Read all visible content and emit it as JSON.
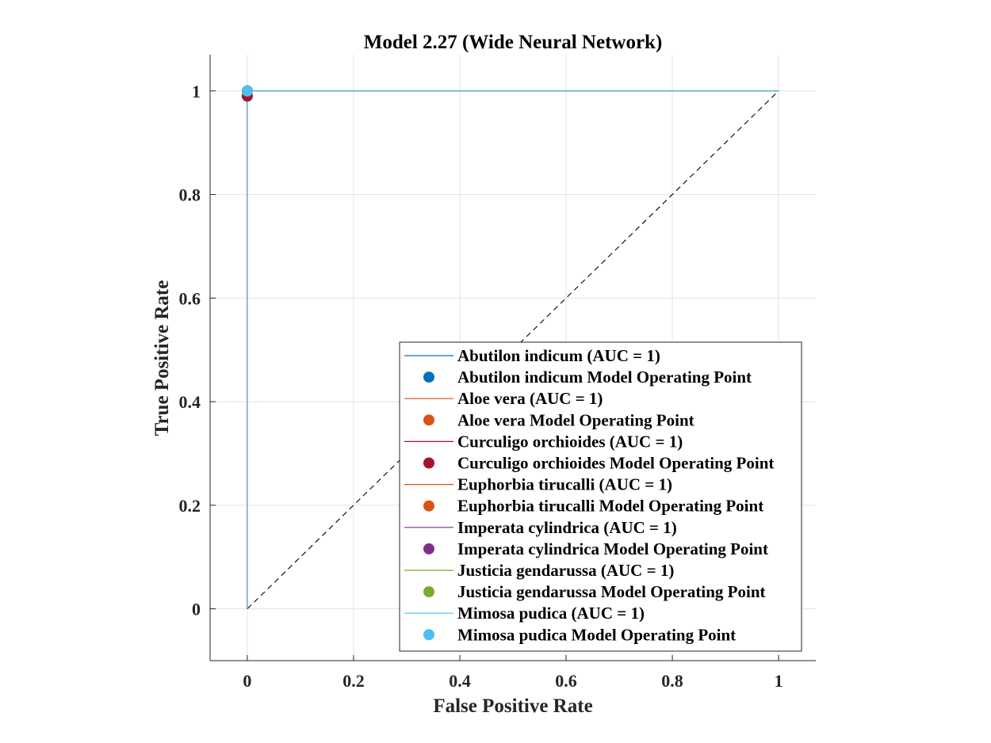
{
  "chart_data": {
    "type": "line",
    "title": "Model 2.27 (Wide Neural Network)",
    "xlabel": "False Positive Rate",
    "ylabel": "True Positive Rate",
    "xlim": [
      -0.07,
      1.07
    ],
    "ylim": [
      -0.1,
      1.07
    ],
    "xticks": [
      0,
      0.2,
      0.4,
      0.6,
      0.8,
      1
    ],
    "xtick_labels": [
      "0",
      "0.2",
      "0.4",
      "0.6",
      "0.8",
      "1"
    ],
    "yticks": [
      0,
      0.2,
      0.4,
      0.6,
      0.8,
      1
    ],
    "ytick_labels": [
      "0",
      "0.2",
      "0.4",
      "0.6",
      "0.8",
      "1"
    ],
    "grid": true,
    "legend_position": "bottom-right",
    "reference_line": {
      "x": [
        0,
        1
      ],
      "y": [
        0,
        1
      ],
      "color": "#000000",
      "style": "dashed"
    },
    "series": [
      {
        "name": "Abutilon indicum (AUC = 1)",
        "color": "#0072BD",
        "x": [
          0,
          0,
          1
        ],
        "y": [
          0,
          1,
          1
        ],
        "point_name": "Abutilon indicum Model Operating Point",
        "point": [
          0,
          1
        ]
      },
      {
        "name": "Aloe vera (AUC = 1)",
        "color": "#D95319",
        "x": [
          0,
          0,
          1
        ],
        "y": [
          0,
          1,
          1
        ],
        "point_name": "Aloe vera Model Operating Point",
        "point": [
          0,
          0.99
        ]
      },
      {
        "name": "Curculigo orchioides (AUC = 1)",
        "color": "#A2142F",
        "x": [
          0,
          0,
          1
        ],
        "y": [
          0,
          1,
          1
        ],
        "point_name": "Curculigo orchioides Model Operating Point",
        "point": [
          0,
          0.99
        ]
      },
      {
        "name": "Euphorbia tirucalli (AUC = 1)",
        "color": "#D95319",
        "x": [
          0,
          0,
          1
        ],
        "y": [
          0,
          1,
          1
        ],
        "point_name": "Euphorbia tirucalli Model Operating Point",
        "point": [
          0,
          1
        ]
      },
      {
        "name": "Imperata cylindrica (AUC = 1)",
        "color": "#7E2F8E",
        "x": [
          0,
          0,
          1
        ],
        "y": [
          0,
          1,
          1
        ],
        "point_name": "Imperata cylindrica Model Operating Point",
        "point": [
          0,
          1
        ]
      },
      {
        "name": "Justicia gendarussa (AUC = 1)",
        "color": "#77AC30",
        "x": [
          0,
          0,
          1
        ],
        "y": [
          0,
          1,
          1
        ],
        "point_name": "Justicia gendarussa Model Operating Point",
        "point": [
          0,
          1
        ]
      },
      {
        "name": "Mimosa pudica (AUC = 1)",
        "color": "#4DBEEE",
        "x": [
          0,
          0,
          1
        ],
        "y": [
          0,
          1,
          1
        ],
        "point_name": "Mimosa pudica Model Operating Point",
        "point": [
          0,
          1
        ]
      }
    ]
  }
}
